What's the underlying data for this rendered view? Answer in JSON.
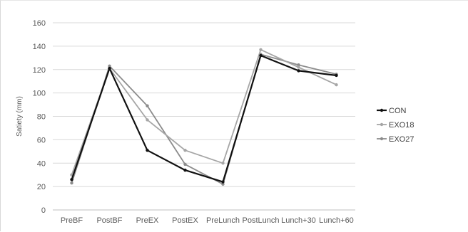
{
  "chart_data": {
    "type": "line",
    "title": "",
    "xlabel": "",
    "ylabel": "Satiety (mm)",
    "categories": [
      "PreBF",
      "PostBF",
      "PreEX",
      "PostEX",
      "PreLunch",
      "PostLunch",
      "Lunch+30",
      "Lunch+60"
    ],
    "ylim": [
      0,
      160
    ],
    "yticks": [
      0,
      20,
      40,
      60,
      80,
      100,
      120,
      140,
      160
    ],
    "grid": "horizontal",
    "legend_position": "right",
    "series": [
      {
        "name": "CON",
        "color": "#111111",
        "values": [
          26,
          121,
          51,
          34,
          24,
          132,
          119,
          115
        ]
      },
      {
        "name": "EXO18",
        "color": "#a6a6a6",
        "values": [
          30,
          121,
          77,
          51,
          40,
          137,
          122,
          107
        ]
      },
      {
        "name": "EXO27",
        "color": "#8c8c8c",
        "values": [
          23,
          123,
          89,
          39,
          22,
          133,
          124,
          116
        ]
      }
    ]
  }
}
